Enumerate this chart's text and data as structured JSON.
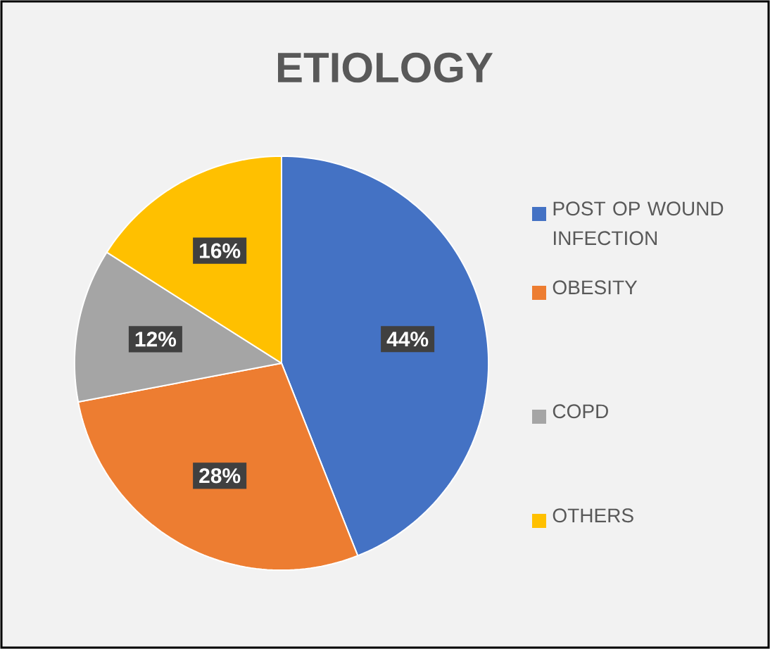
{
  "chart_data": {
    "type": "pie",
    "title": "ETIOLOGY",
    "categories": [
      "POST OP WOUND INFECTION",
      "OBESITY",
      "COPD",
      "OTHERS"
    ],
    "values": [
      44,
      28,
      12,
      16
    ],
    "value_labels": [
      "44%",
      "28%",
      "12%",
      "16%"
    ],
    "colors": [
      "#4472c4",
      "#ed7d31",
      "#a5a5a5",
      "#ffc000"
    ],
    "legend": "right"
  }
}
